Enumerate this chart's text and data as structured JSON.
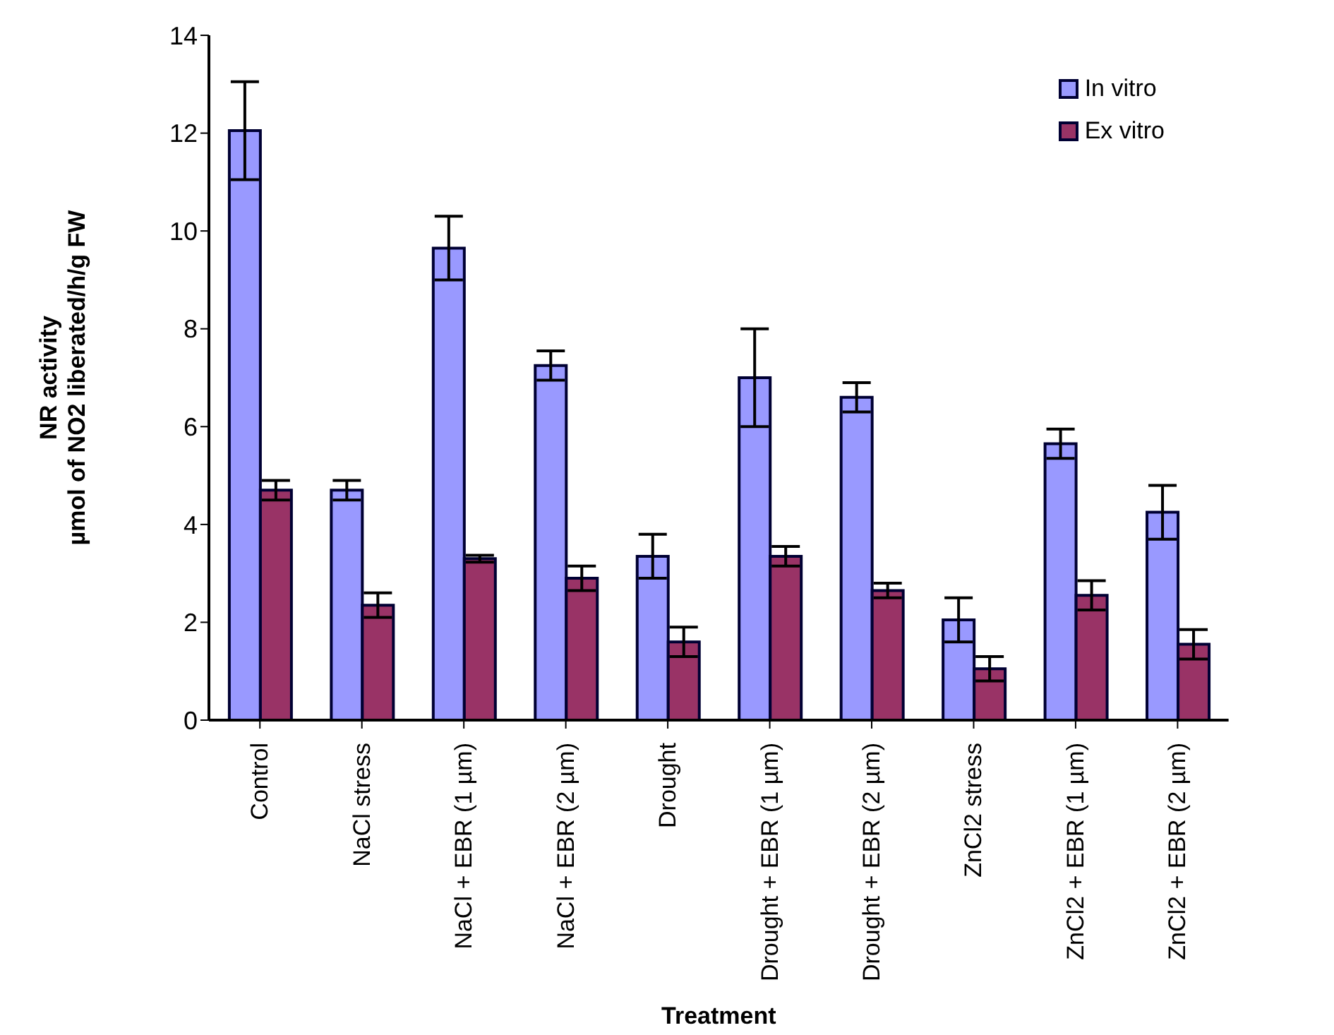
{
  "chart_data": {
    "type": "bar",
    "xlabel": "Treatment",
    "ylabel": "NR activity\nµmol of NO2 liberated/h/g FW",
    "categories": [
      "Control",
      "NaCl stress",
      "NaCl + EBR (1 µm)",
      "NaCl + EBR (2 µm)",
      "Drought",
      "Drought + EBR (1 µm)",
      "Drought + EBR (2 µm)",
      "ZnCl2 stress",
      "ZnCl2 + EBR (1 µm)",
      "ZnCl2 + EBR (2 µm)"
    ],
    "series": [
      {
        "name": "In vitro",
        "color": "#9999ff",
        "values": [
          12.05,
          4.7,
          9.65,
          7.25,
          3.35,
          7.0,
          6.6,
          2.05,
          5.65,
          4.25
        ],
        "errors": [
          1.0,
          0.2,
          0.65,
          0.3,
          0.45,
          1.0,
          0.3,
          0.45,
          0.3,
          0.55
        ]
      },
      {
        "name": "Ex vitro",
        "color": "#993366",
        "values": [
          4.7,
          2.35,
          3.3,
          2.9,
          1.6,
          3.35,
          2.65,
          1.05,
          2.55,
          1.55
        ],
        "errors": [
          0.2,
          0.25,
          0.07,
          0.25,
          0.3,
          0.2,
          0.15,
          0.25,
          0.3,
          0.3
        ]
      }
    ],
    "ylim": [
      0,
      14
    ],
    "yticks": [
      0,
      2,
      4,
      6,
      8,
      10,
      12,
      14
    ],
    "grid": false,
    "legend": "top right"
  }
}
